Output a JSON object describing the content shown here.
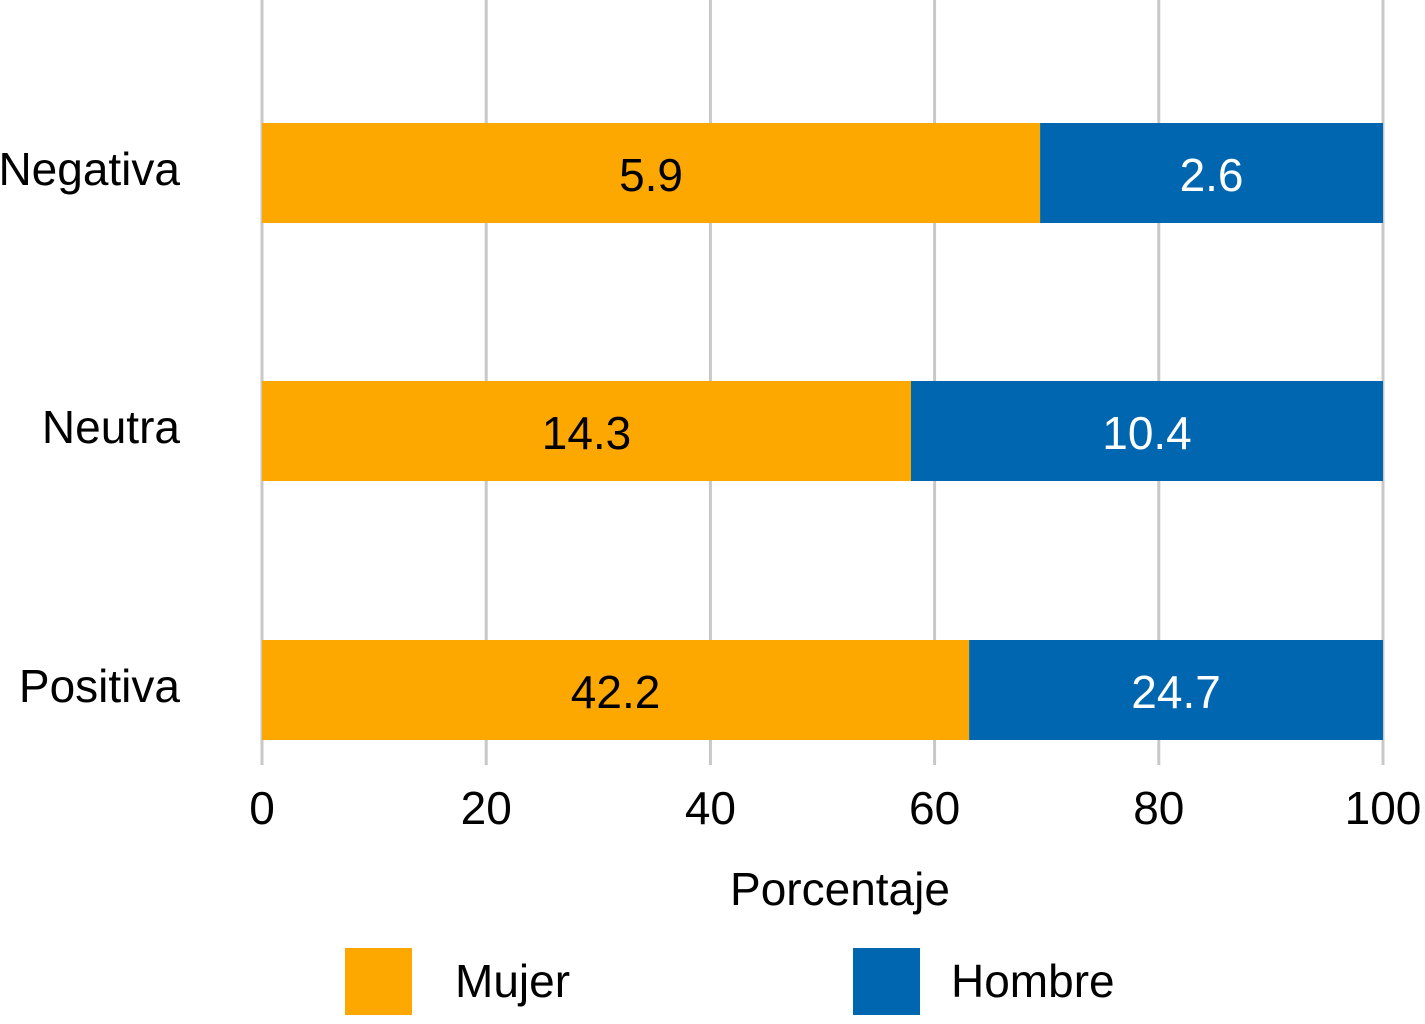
{
  "chart_data": {
    "type": "bar",
    "orientation": "horizontal",
    "stacking": "percent",
    "x_label": "Porcentaje",
    "categories": [
      "Negativa",
      "Neutra",
      "Positiva"
    ],
    "series": [
      {
        "name": "Mujer",
        "color": "#fca800",
        "label_color": "#000000",
        "values": [
          5.9,
          14.3,
          42.2
        ]
      },
      {
        "name": "Hombre",
        "color": "#0066b0",
        "label_color": "#ffffff",
        "values": [
          2.6,
          10.4,
          24.7
        ]
      }
    ],
    "xlim": [
      0,
      100
    ],
    "xticks": [
      0,
      20,
      40,
      60,
      80,
      100
    ],
    "grid": true
  }
}
